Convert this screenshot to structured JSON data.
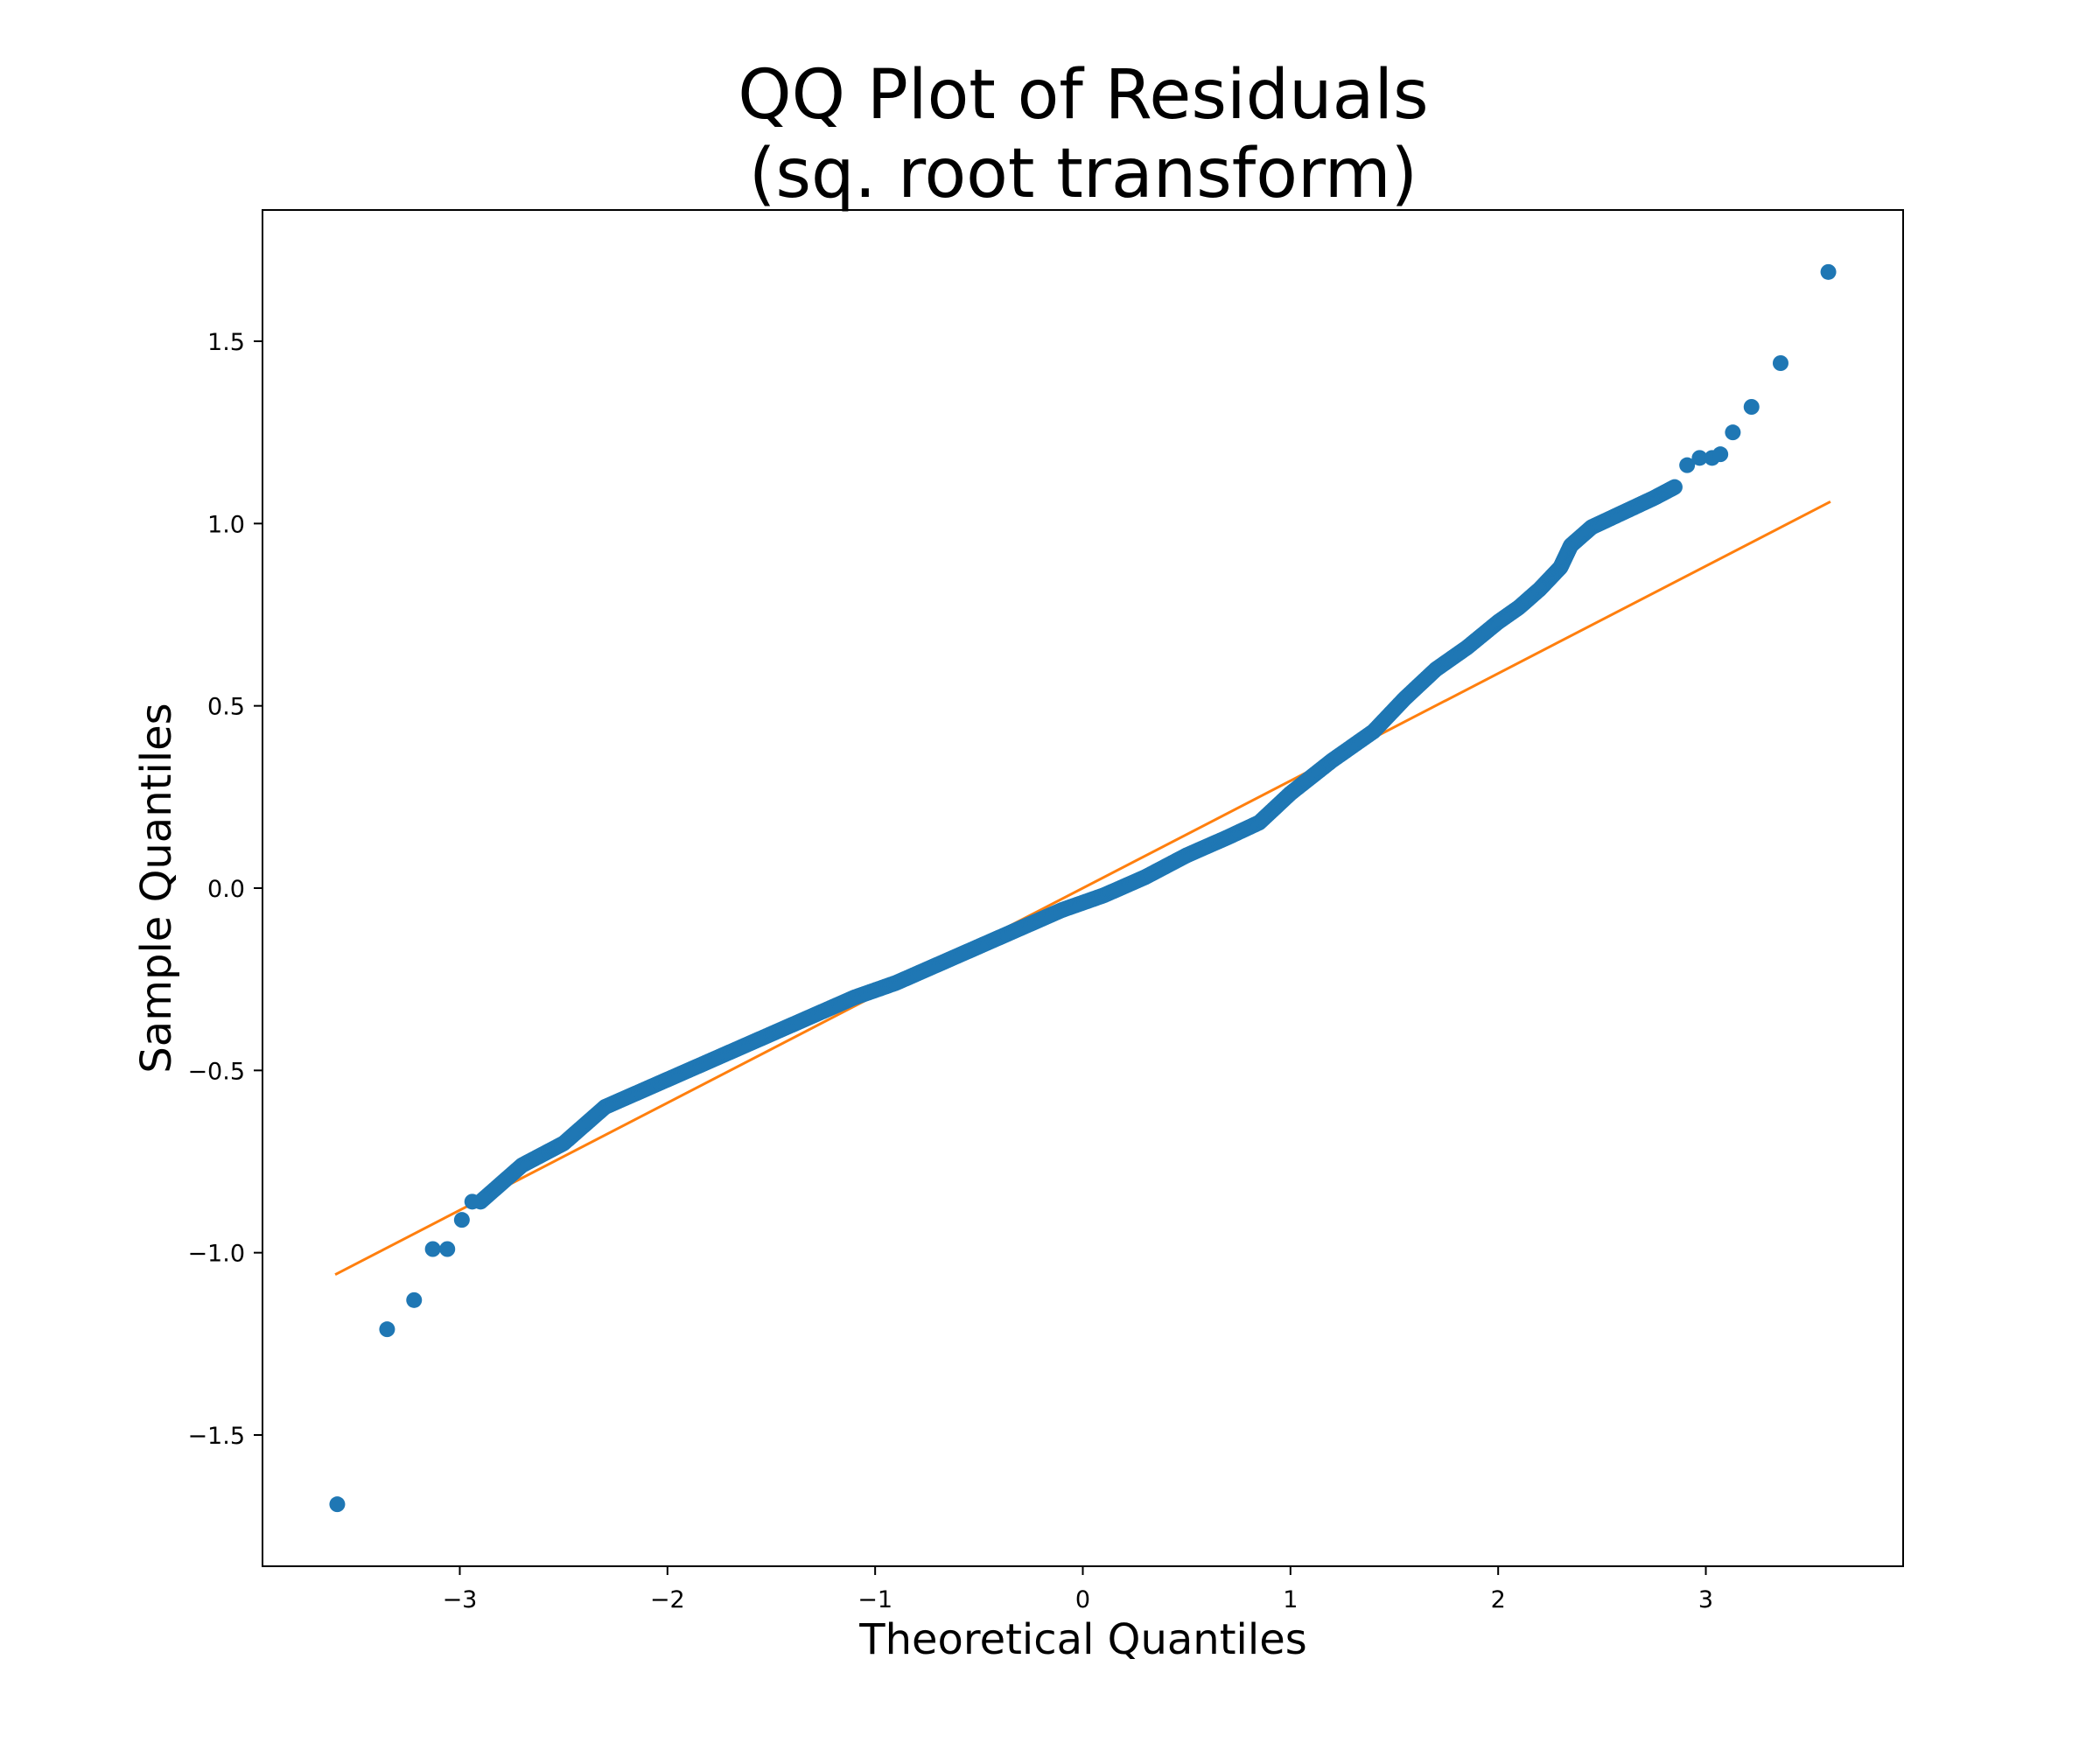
{
  "chart_data": {
    "type": "scatter",
    "title_lines": [
      "QQ Plot of Residuals",
      "(sq. root transform)"
    ],
    "xlabel": "Theoretical Quantiles",
    "ylabel": "Sample Quantiles",
    "xlim": [
      -3.95,
      3.95
    ],
    "ylim": [
      -1.86,
      1.86
    ],
    "x_ticks": [
      -3,
      -2,
      -1,
      0,
      1,
      2,
      3
    ],
    "x_tick_labels": [
      "−3",
      "−2",
      "−1",
      "0",
      "1",
      "2",
      "3"
    ],
    "y_ticks": [
      -1.5,
      -1.0,
      -0.5,
      0.0,
      0.5,
      1.0,
      1.5
    ],
    "y_tick_labels": [
      "−1.5",
      "−1.0",
      "−0.5",
      "0.0",
      "0.5",
      "1.0",
      "1.5"
    ],
    "grid": false,
    "colors": {
      "points": "#1f77b4",
      "reference_line": "#ff7f0e",
      "axes": "#000000"
    },
    "reference_line": {
      "x": [
        -3.6,
        3.6
      ],
      "y": [
        -1.06,
        1.06
      ]
    },
    "points_curve": {
      "x": [
        -2.9,
        -2.7,
        -2.5,
        -2.3,
        -2.1,
        -1.9,
        -1.7,
        -1.5,
        -1.3,
        -1.1,
        -0.9,
        -0.7,
        -0.5,
        -0.3,
        -0.1,
        0.1,
        0.3,
        0.5,
        0.7,
        0.85,
        1.0,
        1.2,
        1.4,
        1.55,
        1.7,
        1.85,
        2.0,
        2.1,
        2.2,
        2.3,
        2.35,
        2.45,
        2.6,
        2.75,
        2.85
      ],
      "y": [
        -0.86,
        -0.76,
        -0.7,
        -0.6,
        -0.55,
        -0.5,
        -0.45,
        -0.4,
        -0.35,
        -0.3,
        -0.26,
        -0.21,
        -0.16,
        -0.11,
        -0.06,
        -0.02,
        0.03,
        0.09,
        0.14,
        0.18,
        0.26,
        0.35,
        0.43,
        0.52,
        0.6,
        0.66,
        0.73,
        0.77,
        0.82,
        0.88,
        0.94,
        0.99,
        1.03,
        1.07,
        1.1
      ]
    },
    "points_outliers": {
      "x": [
        -3.59,
        -3.35,
        -3.22,
        -3.13,
        -3.06,
        -2.99,
        -2.94,
        2.91,
        2.97,
        3.03,
        3.07,
        3.13,
        3.22,
        3.36,
        3.59
      ],
      "y": [
        -1.69,
        -1.21,
        -1.13,
        -0.99,
        -0.99,
        -0.91,
        -0.86,
        1.16,
        1.18,
        1.18,
        1.19,
        1.25,
        1.32,
        1.44,
        1.69
      ]
    }
  }
}
